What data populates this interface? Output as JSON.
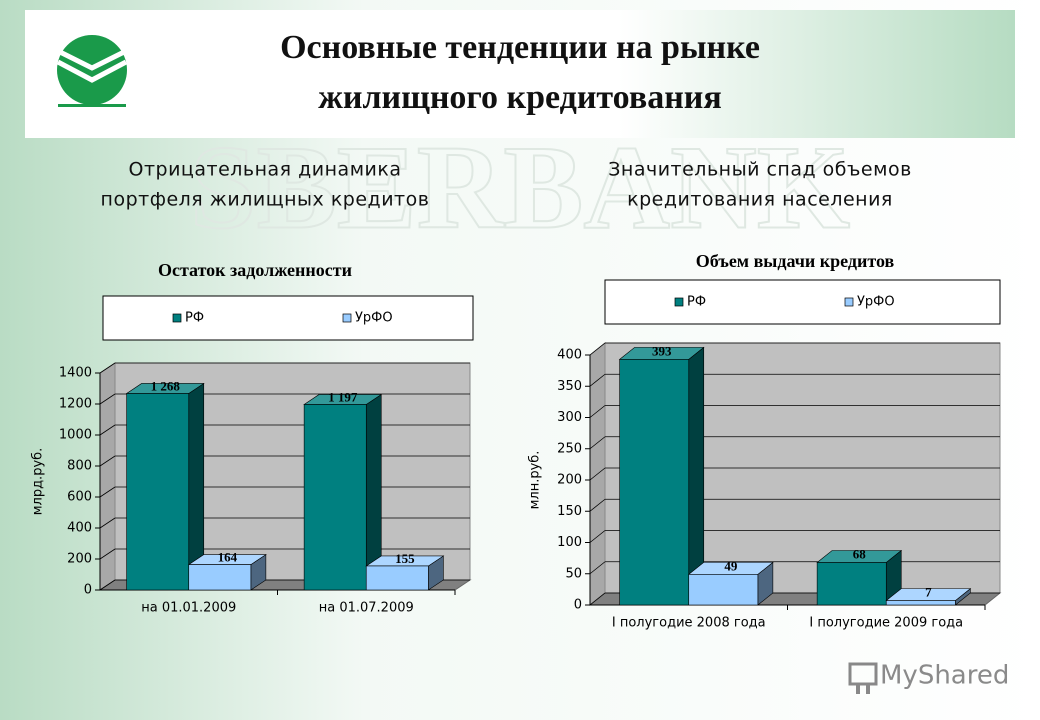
{
  "title": [
    "Основные тенденции на рынке",
    "жилищного кредитования"
  ],
  "watermark": "SBERBANK",
  "brand": "MyShared",
  "chart_data": [
    {
      "type": "bar",
      "subtitle": [
        "Отрицательная динамика",
        "портфеля жилищных кредитов"
      ],
      "title": "Остаток задолженности",
      "ylabel": "млрд.руб.",
      "categories": [
        "на 01.01.2009",
        "на 01.07.2009"
      ],
      "series": [
        {
          "name": "РФ",
          "color": "#008080",
          "values": [
            1268,
            1197
          ],
          "value_labels": [
            "1 268",
            "1 197"
          ]
        },
        {
          "name": "УрФО",
          "color": "#99ccff",
          "values": [
            164,
            155
          ]
        }
      ],
      "ylim": [
        0,
        1400
      ],
      "yticks": [
        0,
        200,
        400,
        600,
        800,
        1000,
        1200,
        1400
      ],
      "grid": true,
      "legend": "top"
    },
    {
      "type": "bar",
      "subtitle": [
        "Значительный спад объемов",
        "кредитования населения"
      ],
      "title": "Объем выдачи кредитов",
      "ylabel": "млн.руб.",
      "categories": [
        "I полугодие 2008 года",
        "I полугодие 2009 года"
      ],
      "series": [
        {
          "name": "РФ",
          "color": "#008080",
          "values": [
            393,
            68
          ]
        },
        {
          "name": "УрФО",
          "color": "#99ccff",
          "values": [
            49,
            7
          ]
        }
      ],
      "ylim": [
        0,
        400
      ],
      "yticks": [
        0,
        50,
        100,
        150,
        200,
        250,
        300,
        350,
        400
      ],
      "grid": true,
      "legend": "top"
    }
  ]
}
